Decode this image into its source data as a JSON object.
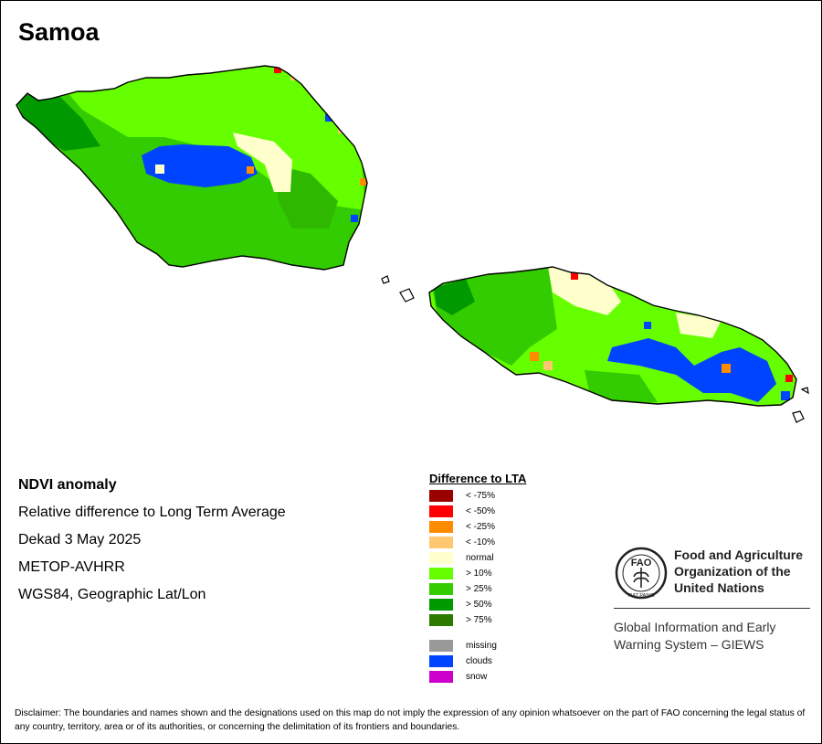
{
  "title": "Samoa",
  "info": {
    "title": "NDVI anomaly",
    "line1": "Relative difference to Long Term Average",
    "line2": "Dekad 3 May 2025",
    "line3": "METOP-AVHRR",
    "line4": "WGS84, Geographic Lat/Lon"
  },
  "legend": {
    "title": "Difference to LTA",
    "items": [
      {
        "label": "< -75%",
        "color": "#990000"
      },
      {
        "label": "< -50%",
        "color": "#ff0000"
      },
      {
        "label": "< -25%",
        "color": "#ff8c00"
      },
      {
        "label": "< -10%",
        "color": "#ffc870"
      },
      {
        "label": "normal",
        "color": "#ffffcc"
      },
      {
        "label": "> 10%",
        "color": "#66ff00"
      },
      {
        "label": "> 25%",
        "color": "#33cc00"
      },
      {
        "label": "> 50%",
        "color": "#009900"
      },
      {
        "label": "> 75%",
        "color": "#2d7a00"
      }
    ],
    "extra_items": [
      {
        "label": "missing",
        "color": "#999999"
      },
      {
        "label": "clouds",
        "color": "#0044ff"
      },
      {
        "label": "snow",
        "color": "#cc00cc"
      }
    ]
  },
  "org": {
    "logo_letters": "FAO",
    "logo_motto": "FIAT PANIS",
    "name_line1": "Food and Agriculture",
    "name_line2": "Organization of the",
    "name_line3": "United Nations",
    "system_line1": "Global Information and Early",
    "system_line2": "Warning System – GIEWS"
  },
  "disclaimer": "Disclaimer: The boundaries and names shown and the designations used on this map do not imply the expression of any opinion whatsoever on the part of FAO concerning the legal status of any country, territory, area or of its authorities, or concerning the delimitation of its frontiers and boundaries."
}
